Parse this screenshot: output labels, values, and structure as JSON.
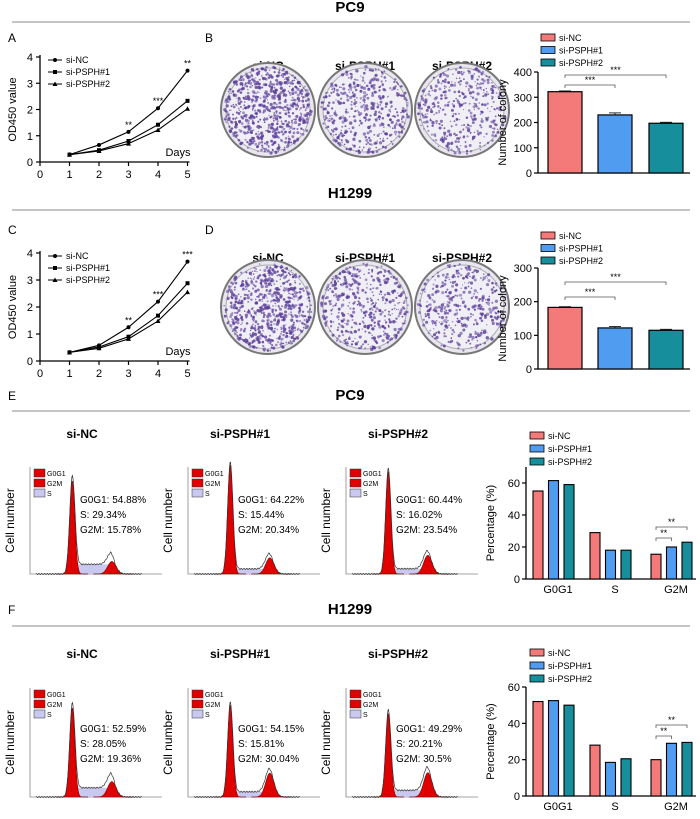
{
  "sections": [
    "PC9",
    "H1299",
    "PC9",
    "H1299"
  ],
  "panel_letters": [
    "A",
    "B",
    "C",
    "D",
    "E",
    "F"
  ],
  "groups": [
    "si-NC",
    "si-PSPH#1",
    "si-PSPH#2"
  ],
  "colors": {
    "si-NC": "#f47a7a",
    "si-PSPH#1": "#4f9cf0",
    "si-PSPH#2": "#178e9c",
    "plate_dots": "#5b3f9a",
    "g_phase": "#e00000",
    "s_phase": "#c8c8f0"
  },
  "plates": {
    "B": {
      "labels": [
        "si-NC",
        "si-PSPH#1",
        "si-PSPH#2"
      ]
    },
    "D": {
      "labels": [
        "si-NC",
        "si-PSPH#1",
        "si-PSPH#2"
      ]
    }
  },
  "chart_data": [
    {
      "panel": "A",
      "type": "line",
      "xlabel": "Days",
      "ylabel": "OD450 value",
      "xlim": [
        0,
        5
      ],
      "ylim": [
        0,
        4
      ],
      "xticks": [
        "0",
        "1",
        "2",
        "3",
        "4",
        "5"
      ],
      "yticks": [
        "0",
        "1",
        "2",
        "3",
        "4"
      ],
      "x": [
        1,
        2,
        3,
        4,
        5
      ],
      "series": [
        {
          "name": "si-NC",
          "marker": "circle",
          "values": [
            0.28,
            0.65,
            1.15,
            2.05,
            3.48
          ]
        },
        {
          "name": "si-PSPH#1",
          "marker": "square",
          "values": [
            0.28,
            0.45,
            0.8,
            1.42,
            2.33
          ]
        },
        {
          "name": "si-PSPH#2",
          "marker": "triangle",
          "values": [
            0.28,
            0.42,
            0.7,
            1.22,
            2.03
          ]
        }
      ],
      "significance": [
        {
          "x": 3,
          "label": "**"
        },
        {
          "x": 4,
          "label": "***"
        },
        {
          "x": 5,
          "label": "**"
        }
      ],
      "legend": "top-left"
    },
    {
      "panel": "B",
      "type": "bar",
      "ylabel": "Number of colony",
      "ylim": [
        0,
        400
      ],
      "yticks": [
        "0",
        "100",
        "200",
        "300",
        "400"
      ],
      "categories": [
        "si-NC",
        "si-PSPH#1",
        "si-PSPH#2"
      ],
      "values": [
        322,
        230,
        197
      ],
      "errors": [
        3,
        8,
        4
      ],
      "significance": [
        {
          "pair": [
            0,
            1
          ],
          "label": "***"
        },
        {
          "pair": [
            0,
            2
          ],
          "label": "***"
        }
      ],
      "legend": "top"
    },
    {
      "panel": "C",
      "type": "line",
      "xlabel": "Days",
      "ylabel": "OD450 value",
      "xlim": [
        0,
        5
      ],
      "ylim": [
        0,
        4
      ],
      "xticks": [
        "0",
        "1",
        "2",
        "3",
        "4",
        "5"
      ],
      "yticks": [
        "0",
        "1",
        "2",
        "3",
        "4"
      ],
      "x": [
        1,
        2,
        3,
        4,
        5
      ],
      "series": [
        {
          "name": "si-NC",
          "marker": "circle",
          "values": [
            0.32,
            0.58,
            1.25,
            2.2,
            3.68
          ]
        },
        {
          "name": "si-PSPH#1",
          "marker": "square",
          "values": [
            0.32,
            0.52,
            0.9,
            1.68,
            2.88
          ]
        },
        {
          "name": "si-PSPH#2",
          "marker": "triangle",
          "values": [
            0.32,
            0.47,
            0.82,
            1.48,
            2.55
          ]
        }
      ],
      "significance": [
        {
          "x": 3,
          "label": "**"
        },
        {
          "x": 4,
          "label": "***"
        },
        {
          "x": 5,
          "label": "***"
        }
      ],
      "legend": "top-left"
    },
    {
      "panel": "D",
      "type": "bar",
      "ylabel": "Number of colony",
      "ylim": [
        0,
        300
      ],
      "yticks": [
        "0",
        "100",
        "200",
        "300"
      ],
      "categories": [
        "si-NC",
        "si-PSPH#1",
        "si-PSPH#2"
      ],
      "values": [
        183,
        122,
        115
      ],
      "errors": [
        2,
        4,
        3
      ],
      "significance": [
        {
          "pair": [
            0,
            1
          ],
          "label": "***"
        },
        {
          "pair": [
            0,
            2
          ],
          "label": "***"
        }
      ],
      "legend": "top"
    },
    {
      "panel": "E",
      "type": "bar",
      "ylabel": "Percentage (%)",
      "ylim": [
        0,
        70
      ],
      "yticks": [
        "0",
        "20",
        "40",
        "60"
      ],
      "categories": [
        "G0G1",
        "S",
        "G2M"
      ],
      "series": [
        {
          "name": "si-NC",
          "values": [
            55,
            29,
            15.5
          ]
        },
        {
          "name": "si-PSPH#1",
          "values": [
            61.5,
            18,
            20
          ]
        },
        {
          "name": "si-PSPH#2",
          "values": [
            59,
            18,
            23
          ]
        }
      ],
      "significance": [
        {
          "category": "G2M",
          "pair": [
            0,
            1
          ],
          "label": "**"
        },
        {
          "category": "G2M",
          "pair": [
            0,
            2
          ],
          "label": "**"
        }
      ],
      "legend": "top"
    },
    {
      "panel": "F",
      "type": "bar",
      "ylabel": "Percentage (%)",
      "ylim": [
        0,
        60
      ],
      "yticks": [
        "0",
        "20",
        "40",
        "60"
      ],
      "categories": [
        "G0G1",
        "S",
        "G2M"
      ],
      "series": [
        {
          "name": "si-NC",
          "values": [
            52,
            28,
            20
          ]
        },
        {
          "name": "si-PSPH#1",
          "values": [
            52.5,
            18.5,
            29
          ]
        },
        {
          "name": "si-PSPH#2",
          "values": [
            50,
            20.5,
            29.5
          ]
        }
      ],
      "significance": [
        {
          "category": "G2M",
          "pair": [
            0,
            1
          ],
          "label": "**"
        },
        {
          "category": "G2M",
          "pair": [
            0,
            2
          ],
          "label": "**"
        }
      ],
      "legend": "top"
    }
  ],
  "histograms": {
    "ylabel": "Cell number",
    "legend": [
      "G0G1",
      "G2M",
      "S"
    ],
    "E": [
      {
        "title": "si-NC",
        "lines": [
          "G0G1: 54.88%",
          "S: 29.34%",
          "G2M: 15.78%"
        ],
        "g0g1": 54.88,
        "s": 29.34,
        "g2m": 15.78
      },
      {
        "title": "si-PSPH#1",
        "lines": [
          "G0G1: 64.22%",
          "S: 15.44%",
          "G2M: 20.34%"
        ],
        "g0g1": 64.22,
        "s": 15.44,
        "g2m": 20.34
      },
      {
        "title": "si-PSPH#2",
        "lines": [
          "G0G1: 60.44%",
          "S: 16.02%",
          "G2M: 23.54%"
        ],
        "g0g1": 60.44,
        "s": 16.02,
        "g2m": 23.54
      }
    ],
    "F": [
      {
        "title": "si-NC",
        "lines": [
          "G0G1:  52.59%",
          "S: 28.05%",
          "G2M: 19.36%"
        ],
        "g0g1": 52.59,
        "s": 28.05,
        "g2m": 19.36
      },
      {
        "title": "si-PSPH#1",
        "lines": [
          "G0G1:  54.15%",
          "S: 15.81%",
          "G2M: 30.04%"
        ],
        "g0g1": 54.15,
        "s": 15.81,
        "g2m": 30.04
      },
      {
        "title": "si-PSPH#2",
        "lines": [
          "G0G1:  49.29%",
          "S: 20.21%",
          "G2M: 30.5%"
        ],
        "g0g1": 49.29,
        "s": 20.21,
        "g2m": 30.5
      }
    ]
  }
}
